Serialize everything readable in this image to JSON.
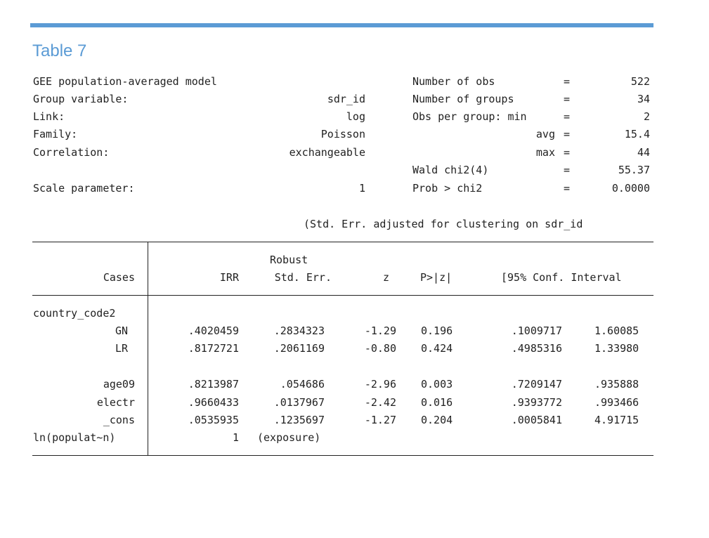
{
  "slide": {
    "title": "Table 7"
  },
  "model_header": {
    "left": [
      {
        "label": "GEE population-averaged model",
        "value": ""
      },
      {
        "label": "Group variable:",
        "value": "sdr_id"
      },
      {
        "label": "Link:",
        "value": "log"
      },
      {
        "label": "Family:",
        "value": "Poisson"
      },
      {
        "label": "Correlation:",
        "value": "exchangeable"
      },
      {
        "label": "Scale parameter:",
        "value": "1"
      }
    ],
    "right": [
      {
        "label": "Number of obs",
        "eq": "=",
        "value": "522"
      },
      {
        "label": "Number of groups",
        "eq": "=",
        "value": "34"
      },
      {
        "label": "Obs per group: min",
        "eq": "=",
        "value": "2"
      },
      {
        "label": "avg",
        "eq": "=",
        "value": "15.4"
      },
      {
        "label": "max",
        "eq": "=",
        "value": "44"
      },
      {
        "label": "Wald chi2(4)",
        "eq": "=",
        "value": "55.37"
      },
      {
        "label": "Prob > chi2",
        "eq": "=",
        "value": "0.0000"
      }
    ]
  },
  "note": "(Std. Err. adjusted for clustering on sdr_id",
  "table": {
    "header_top": "Robust",
    "columns": [
      "Cases",
      "IRR",
      "Std. Err.",
      "z",
      "P>|z|",
      "[95% Conf. Interval"
    ],
    "group_label": "country_code2",
    "rows": [
      {
        "name": "GN",
        "irr": ".4020459",
        "se": ".2834323",
        "z": "-1.29",
        "p": "0.196",
        "lo": ".1009717",
        "hi": "1.60085"
      },
      {
        "name": "LR",
        "irr": ".8172721",
        "se": ".2061169",
        "z": "-0.80",
        "p": "0.424",
        "lo": ".4985316",
        "hi": "1.33980"
      },
      {
        "name": "age09",
        "irr": ".8213987",
        "se": ".054686",
        "z": "-2.96",
        "p": "0.003",
        "lo": ".7209147",
        "hi": ".935888"
      },
      {
        "name": "electr",
        "irr": ".9660433",
        "se": ".0137967",
        "z": "-2.42",
        "p": "0.016",
        "lo": ".9393772",
        "hi": ".993466"
      },
      {
        "name": "_cons",
        "irr": ".0535935",
        "se": ".1235697",
        "z": "-1.27",
        "p": "0.204",
        "lo": ".0005841",
        "hi": "4.91715"
      }
    ],
    "exposure": {
      "name": "ln(populat~n)",
      "irr": "1",
      "se": "(exposure)"
    }
  }
}
